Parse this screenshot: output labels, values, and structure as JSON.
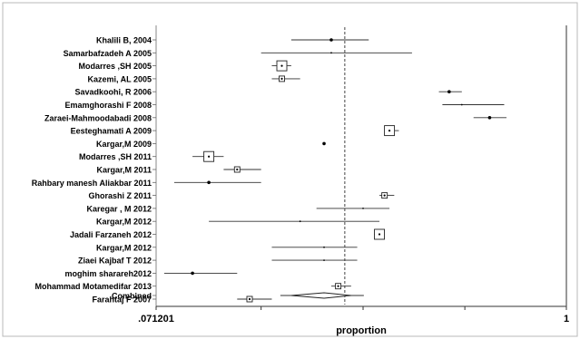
{
  "chart_data": {
    "type": "forest",
    "xlabel": "proportion",
    "x_tick_labels": [
      ".071201",
      "1"
    ],
    "xlim": [
      0.071201,
      1
    ],
    "reference_line": 0.24,
    "studies": [
      {
        "label": "Khalili B, 2004",
        "est": 0.22,
        "lo": 0.17,
        "hi": 0.28,
        "box": "dot"
      },
      {
        "label": "Samarbafzadeh A 2005",
        "est": 0.22,
        "lo": 0.14,
        "hi": 0.37,
        "box": "none"
      },
      {
        "label": "Modarres ,SH 2005",
        "est": 0.16,
        "lo": 0.15,
        "hi": 0.17,
        "box": "large"
      },
      {
        "label": "Kazemi, AL 2005",
        "est": 0.16,
        "lo": 0.15,
        "hi": 0.18,
        "box": "small"
      },
      {
        "label": "Savadkoohi, R 2006",
        "est": 0.47,
        "lo": 0.44,
        "hi": 0.51,
        "box": "dot"
      },
      {
        "label": "Emamghorashi F 2008",
        "est": 0.51,
        "lo": 0.45,
        "hi": 0.67,
        "box": "none"
      },
      {
        "label": "Zaraei-Mahmoodabadi 2008",
        "est": 0.61,
        "lo": 0.55,
        "hi": 0.68,
        "box": "dot"
      },
      {
        "label": "Eesteghamati A 2009",
        "est": 0.32,
        "lo": 0.31,
        "hi": 0.34,
        "box": "large"
      },
      {
        "label": "Kargar,M 2009",
        "est": 0.21,
        "lo": 0.21,
        "hi": 0.21,
        "box": "dot"
      },
      {
        "label": "Modarres ,SH 2011",
        "est": 0.1,
        "lo": 0.09,
        "hi": 0.11,
        "box": "large"
      },
      {
        "label": "Kargar,M 2011",
        "est": 0.12,
        "lo": 0.11,
        "hi": 0.14,
        "box": "small"
      },
      {
        "label": "Rahbary manesh Aliakbar 2011",
        "est": 0.1,
        "lo": 0.08,
        "hi": 0.14,
        "box": "dot"
      },
      {
        "label": "Ghorashi Z 2011",
        "est": 0.31,
        "lo": 0.3,
        "hi": 0.33,
        "box": "small"
      },
      {
        "label": "Karegar , M 2012",
        "est": 0.27,
        "lo": 0.2,
        "hi": 0.32,
        "box": "none"
      },
      {
        "label": "Kargar,M 2012",
        "est": 0.18,
        "lo": 0.1,
        "hi": 0.3,
        "box": "none"
      },
      {
        "label": "Jadali Farzaneh 2012",
        "est": 0.3,
        "lo": 0.29,
        "hi": 0.31,
        "box": "large"
      },
      {
        "label": "Kargar,M 2012",
        "est": 0.21,
        "lo": 0.15,
        "hi": 0.26,
        "box": "none"
      },
      {
        "label": "Ziaei Kajbaf T 2012",
        "est": 0.21,
        "lo": 0.15,
        "hi": 0.26,
        "box": "none"
      },
      {
        "label": "moghim sharareh2012",
        "est": 0.09,
        "lo": 0.075,
        "hi": 0.12,
        "box": "dot"
      },
      {
        "label": "Mohammad Motamedifar 2013",
        "est": 0.23,
        "lo": 0.22,
        "hi": 0.25,
        "box": "small"
      },
      {
        "label": "Farahtaj F  2007",
        "est": 0.13,
        "lo": 0.12,
        "hi": 0.15,
        "box": "small"
      }
    ],
    "combined": {
      "label": "Combined",
      "est": 0.21,
      "lo": 0.17,
      "hi": 0.25
    }
  }
}
